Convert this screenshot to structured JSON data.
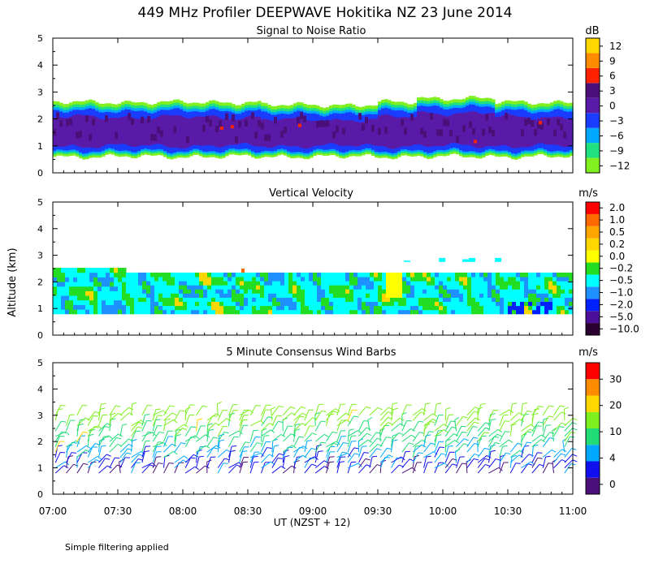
{
  "title": "449 MHz Profiler DEEPWAVE Hokitika NZ 23 June 2014",
  "footnote": "Simple filtering applied",
  "shared": {
    "ylabel": "Altitude (km)",
    "xlabel": "UT  (NZST + 12)",
    "x_ticks": [
      "07:00",
      "07:30",
      "08:00",
      "08:30",
      "09:00",
      "09:30",
      "10:00",
      "10:30",
      "11:00"
    ],
    "x_range_hours": [
      7,
      11
    ],
    "y_ticks": [
      "0",
      "1",
      "2",
      "3",
      "4",
      "5"
    ],
    "y_range_km": [
      0,
      5
    ]
  },
  "chart_data": [
    {
      "type": "heatmap",
      "title": "Signal to Noise Ratio",
      "unit": "dB",
      "colorbar_labels": [
        "12",
        "9",
        "6",
        "3",
        "0",
        "−3",
        "−6",
        "−9",
        "−12"
      ],
      "colorbar_colors": [
        "#ffd700",
        "#ff8c00",
        "#ff2200",
        "#4b0f7a",
        "#5a1aa8",
        "#1a3cff",
        "#00a8ff",
        "#20e080",
        "#80f020"
      ],
      "bottom_km": 0.7,
      "top_km": 2.5,
      "red_spots": [
        {
          "t": 8.3,
          "z": 1.6
        },
        {
          "t": 8.38,
          "z": 1.65
        },
        {
          "t": 8.9,
          "z": 1.7
        },
        {
          "t": 10.25,
          "z": 1.1
        },
        {
          "t": 10.75,
          "z": 1.8
        }
      ]
    },
    {
      "type": "heatmap",
      "title": "Vertical Velocity",
      "unit": "m/s",
      "colorbar_labels": [
        "2.0",
        "1.0",
        "0.5",
        "0.2",
        "0.0",
        "−0.2",
        "−0.5",
        "−1.0",
        "−2.0",
        "−5.0",
        "−10.0"
      ],
      "colorbar_colors": [
        "#ff0000",
        "#ff6a00",
        "#ffa500",
        "#ffd700",
        "#ffff00",
        "#22dd22",
        "#00ffff",
        "#1e90ff",
        "#0020ff",
        "#4b0f9a",
        "#2a0030"
      ],
      "bottom_km": 0.8,
      "top_km": 2.35
    },
    {
      "type": "wind_barbs",
      "title": "5 Minute Consensus Wind Barbs",
      "unit": "m/s",
      "colorbar_labels": [
        "30",
        "20",
        "10",
        "4",
        "0"
      ],
      "colorbar_colors": [
        "#ff0000",
        "#ff8c00",
        "#ffd700",
        "#7ef020",
        "#22dd77",
        "#00a8ff",
        "#1010ee",
        "#4b0f7a"
      ],
      "interval_min": 5,
      "altitude_range_km": [
        0.8,
        3.0
      ]
    }
  ]
}
